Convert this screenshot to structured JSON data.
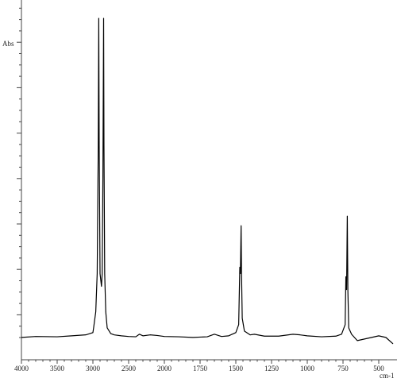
{
  "chart_data": {
    "type": "line",
    "y_label": "Abs",
    "x_label": "cm-1",
    "xlim": [
      4000,
      380
    ],
    "xticks": [
      4000,
      3500,
      3000,
      2500,
      2000,
      1750,
      1500,
      1250,
      1000,
      750,
      500
    ],
    "ylim": [
      -0.07,
      1.02
    ],
    "series": [
      {
        "color": "#000000",
        "x": [
          4000,
          3800,
          3500,
          3300,
          3100,
          3000,
          2990,
          2960,
          2940,
          2925,
          2918,
          2912,
          2900,
          2880,
          2870,
          2860,
          2850,
          2845,
          2835,
          2820,
          2800,
          2750,
          2700,
          2600,
          2500,
          2400,
          2350,
          2300,
          2200,
          2100,
          2000,
          1900,
          1800,
          1700,
          1650,
          1600,
          1550,
          1500,
          1480,
          1472,
          1468,
          1463,
          1460,
          1455,
          1440,
          1400,
          1370,
          1300,
          1200,
          1100,
          1050,
          1000,
          900,
          800,
          760,
          735,
          730,
          725,
          720,
          716,
          710,
          690,
          650,
          600,
          550,
          500,
          450,
          400
        ],
        "values": [
          0,
          0.003,
          0.002,
          0.005,
          0.008,
          0.015,
          0.03,
          0.08,
          0.2,
          0.6,
          1.0,
          0.6,
          0.2,
          0.16,
          0.2,
          0.5,
          1.0,
          0.6,
          0.2,
          0.08,
          0.03,
          0.012,
          0.008,
          0.005,
          0.003,
          0.002,
          0.01,
          0.005,
          0.008,
          0.006,
          0.003,
          0.002,
          0,
          0.002,
          0.01,
          0.003,
          0.005,
          0.015,
          0.04,
          0.22,
          0.2,
          0.35,
          0.2,
          0.06,
          0.02,
          0.008,
          0.01,
          0.004,
          0.004,
          0.01,
          0.008,
          0.005,
          0.002,
          0.004,
          0.01,
          0.04,
          0.19,
          0.15,
          0.38,
          0.15,
          0.03,
          0.01,
          -0.01,
          -0.005,
          0,
          0.005,
          0,
          -0.02
        ]
      }
    ]
  }
}
